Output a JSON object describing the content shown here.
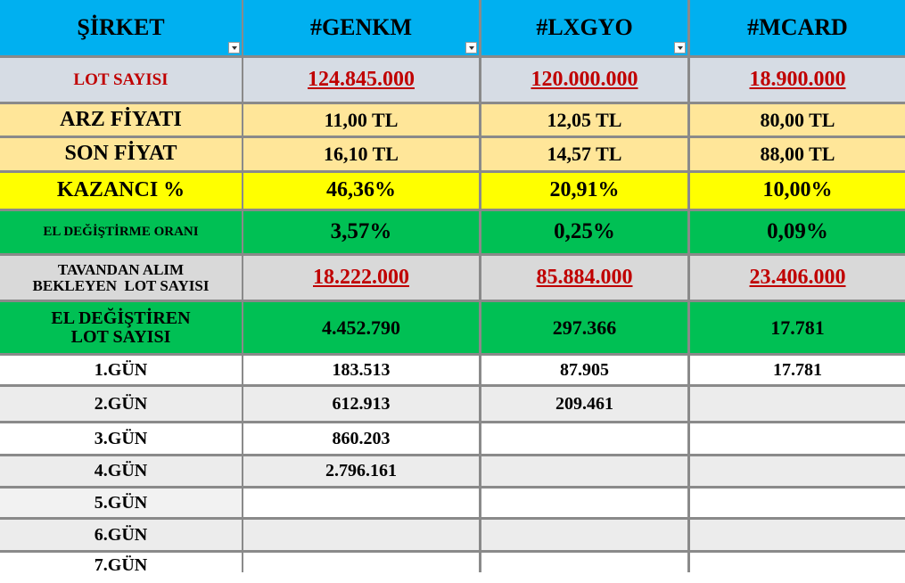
{
  "header": {
    "col1": "ŞİRKET",
    "col2": "#GENKM",
    "col3": "#LXGYO",
    "col4": "#MCARD"
  },
  "rows": {
    "lot": {
      "label": "LOT SAYISI",
      "v": [
        "124.845.000",
        "120.000.000",
        "18.900.000"
      ]
    },
    "arz": {
      "label": "ARZ FİYATI",
      "v": [
        "11,00 TL",
        "12,05 TL",
        "80,00 TL"
      ]
    },
    "son": {
      "label": "SON FİYAT",
      "v": [
        "16,10 TL",
        "14,57 TL",
        "88,00 TL"
      ]
    },
    "kazanc": {
      "label": "KAZANCI %",
      "v": [
        "46,36%",
        "20,91%",
        "10,00%"
      ]
    },
    "oran": {
      "label": "EL DEĞİŞTİRME ORANI",
      "v": [
        "3,57%",
        "0,25%",
        "0,09%"
      ]
    },
    "tavan": {
      "label_line1": "TAVANDAN ALIM",
      "label_line2": "BEKLEYEN  LOT SAYISI",
      "v": [
        "18.222.000",
        "85.884.000",
        "23.406.000"
      ]
    },
    "eldeg": {
      "label_line1": "EL DEĞİŞTİREN",
      "label_line2": "LOT SAYISI",
      "v": [
        "4.452.790",
        "297.366",
        "17.781"
      ]
    }
  },
  "days": [
    {
      "label": "1.GÜN",
      "v": [
        "183.513",
        "87.905",
        "17.781"
      ]
    },
    {
      "label": "2.GÜN",
      "v": [
        "612.913",
        "209.461",
        ""
      ]
    },
    {
      "label": "3.GÜN",
      "v": [
        "860.203",
        "",
        ""
      ]
    },
    {
      "label": "4.GÜN",
      "v": [
        "2.796.161",
        "",
        ""
      ]
    },
    {
      "label": "5.GÜN",
      "v": [
        "",
        "",
        ""
      ]
    },
    {
      "label": "6.GÜN",
      "v": [
        "",
        "",
        ""
      ]
    },
    {
      "label": "7.GÜN",
      "v": [
        "",
        "",
        ""
      ]
    }
  ],
  "colors": {
    "header": "#00b0f0",
    "lot_row": "#d6dce4",
    "price_rows": "#ffe699",
    "profit_row": "#ffff00",
    "green_rows": "#00c054",
    "red_text": "#c00000"
  }
}
